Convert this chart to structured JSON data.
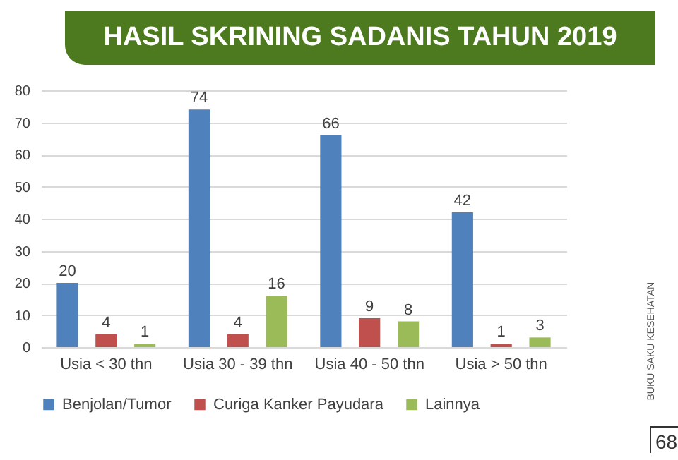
{
  "chart_data": {
    "type": "bar",
    "title": "HASIL SKRINING SADANIS TAHUN 2019",
    "categories": [
      "Usia < 30 thn",
      "Usia 30 - 39 thn",
      "Usia 40 - 50 thn",
      "Usia > 50 thn"
    ],
    "series": [
      {
        "name": "Benjolan/Tumor",
        "color": "#4f81bd",
        "values": [
          20,
          74,
          66,
          42
        ]
      },
      {
        "name": "Curiga Kanker Payudara",
        "color": "#c0504d",
        "values": [
          4,
          4,
          9,
          1
        ]
      },
      {
        "name": "Lainnya",
        "color": "#9bbb59",
        "values": [
          1,
          16,
          8,
          3
        ]
      }
    ],
    "ylim": [
      0,
      80
    ],
    "yticks": [
      0,
      10,
      20,
      30,
      40,
      50,
      60,
      70,
      80
    ],
    "grid": "y",
    "legend": "bottom",
    "data_labels": true,
    "annotations": [
      "BUKU SAKU KESEHATAN",
      "68"
    ]
  }
}
